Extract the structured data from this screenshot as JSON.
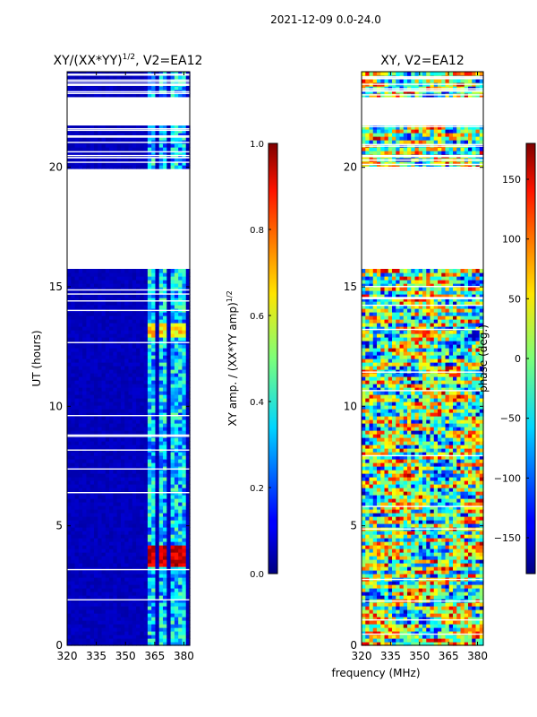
{
  "suptitle": "2021-12-09 0.0-24.0",
  "xlabel_shared": "frequency (MHz)",
  "colors": {
    "nodata": "#ffffff",
    "frame": "#000000"
  },
  "chart_data": [
    {
      "type": "heatmap",
      "title": "XY/(XX*YY)",
      "title_exp": "1/2",
      "title_suffix": ", V2=EA12",
      "xlabel": "",
      "ylabel": "UT (hours)",
      "xlim": [
        320,
        383
      ],
      "ylim": [
        0,
        24
      ],
      "xticks": [
        320,
        335,
        350,
        365,
        380
      ],
      "yticks": [
        0,
        5,
        10,
        15,
        20
      ],
      "colorbar": {
        "label": "XY amp. / (XX*YY amp)",
        "label_exp": "1/2",
        "range": [
          0.0,
          1.0
        ],
        "ticks": [
          "0.0",
          "0.2",
          "0.4",
          "0.6",
          "0.8",
          "1.0"
        ],
        "tick_values": [
          0.0,
          0.2,
          0.4,
          0.6,
          0.8,
          1.0
        ]
      },
      "data_hours": [
        [
          0.0,
          15.7
        ],
        [
          19.9,
          21.8
        ],
        [
          22.9,
          24.0
        ]
      ],
      "strong_channels_mhz": [
        362,
        364,
        368,
        370,
        375,
        379
      ],
      "peak_amplitude": 1.0,
      "typical_amplitude": 0.05
    },
    {
      "type": "heatmap",
      "title": "XY, V2=EA12",
      "xlabel": "",
      "ylabel": "",
      "xlim": [
        320,
        383
      ],
      "ylim": [
        0,
        24
      ],
      "xticks": [
        320,
        335,
        350,
        365,
        380
      ],
      "yticks": [
        0,
        5,
        10,
        15,
        20
      ],
      "colorbar": {
        "label": "phase (deg.)",
        "range": [
          -180,
          180
        ],
        "ticks": [
          "−150",
          "−100",
          "−50",
          "0",
          "50",
          "100",
          "150"
        ],
        "tick_values": [
          -150,
          -100,
          -50,
          0,
          50,
          100,
          150
        ]
      },
      "data_hours": [
        [
          0.0,
          15.7
        ],
        [
          19.9,
          21.8
        ],
        [
          22.9,
          24.0
        ]
      ],
      "phase_range_deg": [
        -180,
        180
      ]
    }
  ]
}
